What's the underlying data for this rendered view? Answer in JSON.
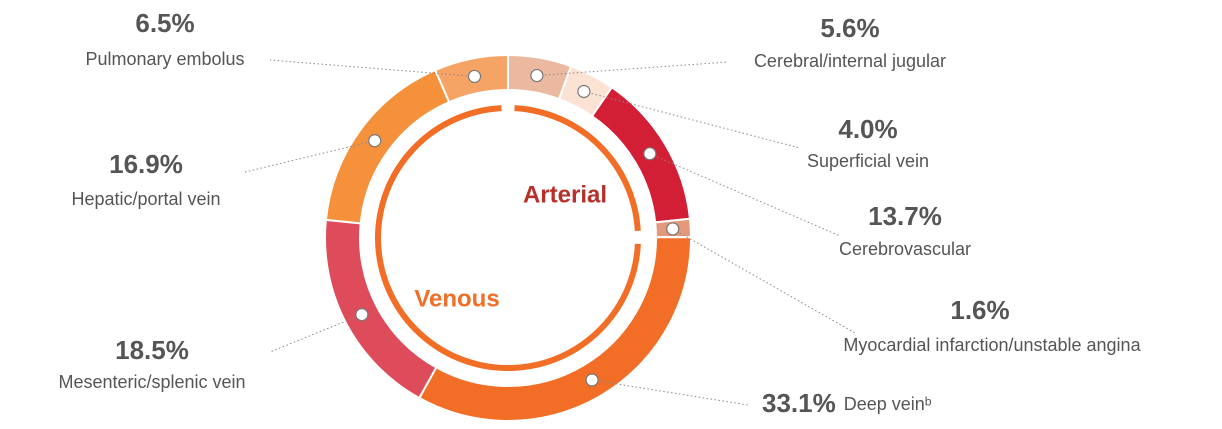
{
  "chart_data": {
    "type": "donut",
    "categories": [
      "Cerebral/internal jugular",
      "Superficial vein",
      "Cerebrovascular",
      "Myocardial infarction/unstable angina",
      "Deep veinᵇ",
      "Mesenteric/splenic vein",
      "Hepatic/portal vein",
      "Pulmonary embolus"
    ],
    "values": [
      5.6,
      4.0,
      13.7,
      1.6,
      33.1,
      18.5,
      16.9,
      6.5
    ],
    "value_labels": [
      "5.6%",
      "4.0%",
      "13.7%",
      "1.6%",
      "33.1%",
      "18.5%",
      "16.9%",
      "6.5%"
    ],
    "colors": [
      "#ebb8a0",
      "#fbe2d2",
      "#d21f35",
      "#e3997c",
      "#f26e26",
      "#de4c5b",
      "#f5913a",
      "#f5a466"
    ],
    "annotations": [
      {
        "text": "Arterial",
        "color": "#b72f2a"
      },
      {
        "text": "Venous",
        "color": "#f26e26"
      }
    ]
  }
}
